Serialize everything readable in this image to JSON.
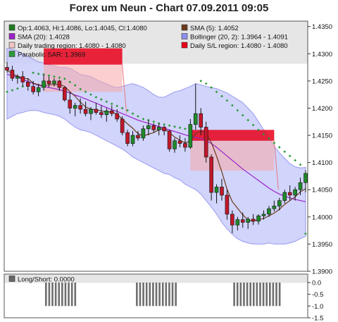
{
  "chart_data": {
    "title": "Forex um Neun - Chart 07.09.2011 09:05",
    "type": "candlestick",
    "legend": [
      {
        "label": "Op:1.4063, Hi:1.4086, Lo:1.4045, Cl:1.4080",
        "color": "#1f7a1f"
      },
      {
        "label": "SMA (5): 1.4052",
        "color": "#6b3a1a"
      },
      {
        "label": "SMA (20): 1.4028",
        "color": "#9a22c8"
      },
      {
        "label": "Bollinger (20, 2): 1.3964 - 1.4091",
        "color": "#8f8ff0"
      },
      {
        "label": "Daily trading region: 1.4080 - 1.4080",
        "color": "#f2c4c4"
      },
      {
        "label": "Daily S/L region: 1.4080 - 1.4080",
        "color": "#e8001a"
      },
      {
        "label": "Parabolic SAR: 1.3969",
        "color": "#2a9a3a"
      }
    ],
    "ylim": [
      1.39,
      1.436
    ],
    "yticks": [
      "1.4350",
      "1.4300",
      "1.4250",
      "1.4200",
      "1.4150",
      "1.4100",
      "1.4050",
      "1.4000",
      "1.3950",
      "1.3900"
    ],
    "candles": [
      [
        1.4275,
        1.4285,
        1.4265,
        1.427
      ],
      [
        1.427,
        1.4278,
        1.425,
        1.4255
      ],
      [
        1.4255,
        1.4262,
        1.4245,
        1.4258
      ],
      [
        1.4258,
        1.4268,
        1.424,
        1.4248
      ],
      [
        1.4248,
        1.4255,
        1.4232,
        1.424
      ],
      [
        1.424,
        1.425,
        1.4225,
        1.423
      ],
      [
        1.423,
        1.4245,
        1.4222,
        1.4238
      ],
      [
        1.4238,
        1.4262,
        1.4232,
        1.425
      ],
      [
        1.425,
        1.4258,
        1.4238,
        1.4245
      ],
      [
        1.4245,
        1.4255,
        1.424,
        1.425
      ],
      [
        1.425,
        1.4252,
        1.4232,
        1.4238
      ],
      [
        1.4238,
        1.424,
        1.4212,
        1.4215
      ],
      [
        1.4215,
        1.423,
        1.419,
        1.42
      ],
      [
        1.42,
        1.421,
        1.4185,
        1.4205
      ],
      [
        1.4205,
        1.4218,
        1.419,
        1.4198
      ],
      [
        1.4198,
        1.4212,
        1.4185,
        1.419
      ],
      [
        1.419,
        1.4202,
        1.4178,
        1.4198
      ],
      [
        1.4198,
        1.421,
        1.4188,
        1.4192
      ],
      [
        1.4192,
        1.4205,
        1.4182,
        1.4188
      ],
      [
        1.4188,
        1.42,
        1.4175,
        1.4195
      ],
      [
        1.4195,
        1.4205,
        1.4185,
        1.419
      ],
      [
        1.419,
        1.4198,
        1.4175,
        1.418
      ],
      [
        1.418,
        1.4185,
        1.415,
        1.4155
      ],
      [
        1.4155,
        1.416,
        1.413,
        1.4135
      ],
      [
        1.4135,
        1.4158,
        1.413,
        1.415
      ],
      [
        1.415,
        1.4158,
        1.414,
        1.4145
      ],
      [
        1.4145,
        1.4168,
        1.414,
        1.4162
      ],
      [
        1.4162,
        1.4178,
        1.415,
        1.4168
      ],
      [
        1.4168,
        1.4172,
        1.4155,
        1.416
      ],
      [
        1.416,
        1.4172,
        1.415,
        1.4165
      ],
      [
        1.4165,
        1.4168,
        1.415,
        1.4158
      ],
      [
        1.4158,
        1.416,
        1.412,
        1.4125
      ],
      [
        1.4125,
        1.4145,
        1.4118,
        1.414
      ],
      [
        1.414,
        1.415,
        1.4128,
        1.4135
      ],
      [
        1.4135,
        1.4145,
        1.412,
        1.4128
      ],
      [
        1.4128,
        1.418,
        1.4125,
        1.417
      ],
      [
        1.417,
        1.4245,
        1.416,
        1.419
      ],
      [
        1.419,
        1.42,
        1.415,
        1.4165
      ],
      [
        1.4165,
        1.4175,
        1.41,
        1.411
      ],
      [
        1.411,
        1.4115,
        1.403,
        1.4045
      ],
      [
        1.4045,
        1.406,
        1.4025,
        1.4055
      ],
      [
        1.4055,
        1.407,
        1.403,
        1.404
      ],
      [
        1.404,
        1.405,
        1.3995,
        1.4005
      ],
      [
        1.4005,
        1.4012,
        1.397,
        1.3985
      ],
      [
        1.3985,
        1.4,
        1.3975,
        1.3995
      ],
      [
        1.3995,
        1.4008,
        1.398,
        1.399
      ],
      [
        1.399,
        1.4,
        1.3978,
        1.3996
      ],
      [
        1.3996,
        1.4005,
        1.3985,
        1.3992
      ],
      [
        1.3992,
        1.4005,
        1.3986,
        1.4002
      ],
      [
        1.4002,
        1.4012,
        1.3995,
        1.4005
      ],
      [
        1.4005,
        1.402,
        1.4,
        1.4015
      ],
      [
        1.4015,
        1.403,
        1.401,
        1.402
      ],
      [
        1.402,
        1.4035,
        1.4012,
        1.403
      ],
      [
        1.403,
        1.405,
        1.4025,
        1.4045
      ],
      [
        1.4045,
        1.4058,
        1.403,
        1.404
      ],
      [
        1.404,
        1.4055,
        1.403,
        1.405
      ],
      [
        1.405,
        1.4072,
        1.404,
        1.4063
      ],
      [
        1.4063,
        1.4086,
        1.4045,
        1.408
      ]
    ],
    "sma5": [
      1.427,
      1.4263,
      1.4259,
      1.4255,
      1.4254,
      1.4246,
      1.4243,
      1.4241,
      1.4243,
      1.4243,
      1.4244,
      1.424,
      1.423,
      1.4222,
      1.4211,
      1.4202,
      1.4198,
      1.4197,
      1.4195,
      1.4193,
      1.4193,
      1.4189,
      1.418,
      1.4171,
      1.4163,
      1.4153,
      1.4149,
      1.4152,
      1.4155,
      1.416,
      1.4163,
      1.4155,
      1.4147,
      1.4141,
      1.4136,
      1.414,
      1.4153,
      1.4158,
      1.4153,
      1.4137,
      1.4112,
      1.4083,
      1.4051,
      1.4028,
      1.4016,
      1.4004,
      1.3994,
      1.3992,
      1.3995,
      1.3997,
      1.4002,
      1.4007,
      1.4014,
      1.4023,
      1.403,
      1.4037,
      1.4046,
      1.4052
    ],
    "sma20": [
      1.4262,
      1.426,
      1.4257,
      1.4253,
      1.4249,
      1.4245,
      1.4242,
      1.424,
      1.4238,
      1.4236,
      1.4234,
      1.4231,
      1.4228,
      1.4224,
      1.4221,
      1.4217,
      1.4213,
      1.4209,
      1.4205,
      1.4201,
      1.4197,
      1.4194,
      1.419,
      1.4186,
      1.4182,
      1.4178,
      1.4175,
      1.4172,
      1.4169,
      1.4166,
      1.4163,
      1.416,
      1.4157,
      1.4154,
      1.4151,
      1.4148,
      1.4146,
      1.4144,
      1.414,
      1.4135,
      1.4128,
      1.412,
      1.4112,
      1.4104,
      1.4096,
      1.4088,
      1.4081,
      1.4074,
      1.4067,
      1.406,
      1.4053,
      1.4047,
      1.4042,
      1.4038,
      1.4035,
      1.4032,
      1.403,
      1.4028
    ],
    "boll_upper": [
      1.431,
      1.4308,
      1.4305,
      1.43,
      1.4295,
      1.429,
      1.4285,
      1.4283,
      1.428,
      1.4278,
      1.4275,
      1.4275,
      1.4273,
      1.4268,
      1.4262,
      1.426,
      1.4258,
      1.4253,
      1.4248,
      1.4245,
      1.424,
      1.4238,
      1.424,
      1.4243,
      1.4245,
      1.4242,
      1.4238,
      1.4232,
      1.4225,
      1.422,
      1.422,
      1.4225,
      1.423,
      1.4232,
      1.4236,
      1.424,
      1.4245,
      1.4243,
      1.424,
      1.4238,
      1.4236,
      1.4232,
      1.4228,
      1.4222,
      1.4216,
      1.421,
      1.42,
      1.419,
      1.4175,
      1.416,
      1.4145,
      1.413,
      1.4118,
      1.4108,
      1.4098,
      1.4092,
      1.409,
      1.4091
    ],
    "boll_lower": [
      1.418,
      1.4185,
      1.419,
      1.4192,
      1.4195,
      1.4196,
      1.4195,
      1.4192,
      1.419,
      1.4188,
      1.4185,
      1.418,
      1.4172,
      1.4165,
      1.416,
      1.4158,
      1.4155,
      1.415,
      1.4145,
      1.414,
      1.4135,
      1.413,
      1.4125,
      1.4118,
      1.411,
      1.4105,
      1.41,
      1.4095,
      1.409,
      1.4085,
      1.408,
      1.4078,
      1.4072,
      1.4068,
      1.406,
      1.4055,
      1.405,
      1.4042,
      1.403,
      1.4018,
      1.4005,
      1.399,
      1.3978,
      1.3968,
      1.396,
      1.3955,
      1.3952,
      1.395,
      1.395,
      1.395,
      1.3952,
      1.395,
      1.395,
      1.395,
      1.3952,
      1.3955,
      1.396,
      1.3964
    ],
    "sar": [
      [
        0,
        1.423
      ],
      [
        1,
        1.4233
      ],
      [
        2,
        1.4236
      ],
      [
        3,
        1.424
      ],
      [
        5,
        1.4265
      ],
      [
        6,
        1.4263
      ],
      [
        7,
        1.4262
      ],
      [
        8,
        1.426
      ],
      [
        9,
        1.4258
      ],
      [
        10,
        1.4256
      ],
      [
        11,
        1.4254
      ],
      [
        12,
        1.4248
      ],
      [
        13,
        1.4242
      ],
      [
        14,
        1.4235
      ],
      [
        15,
        1.423
      ],
      [
        16,
        1.4225
      ],
      [
        17,
        1.422
      ],
      [
        18,
        1.4216
      ],
      [
        19,
        1.4212
      ],
      [
        20,
        1.4208
      ],
      [
        21,
        1.4204
      ],
      [
        22,
        1.42
      ],
      [
        23,
        1.4196
      ],
      [
        24,
        1.419
      ],
      [
        25,
        1.4185
      ],
      [
        26,
        1.418
      ],
      [
        27,
        1.4178
      ],
      [
        28,
        1.4175
      ],
      [
        29,
        1.4172
      ],
      [
        30,
        1.417
      ],
      [
        31,
        1.4168
      ],
      [
        32,
        1.4166
      ],
      [
        33,
        1.4164
      ],
      [
        34,
        1.4162
      ],
      [
        35,
        1.416
      ],
      [
        37,
        1.425
      ],
      [
        38,
        1.4245
      ],
      [
        39,
        1.4238
      ],
      [
        40,
        1.423
      ],
      [
        41,
        1.4222
      ],
      [
        42,
        1.4214
      ],
      [
        43,
        1.4205
      ],
      [
        44,
        1.4196
      ],
      [
        45,
        1.4187
      ],
      [
        46,
        1.4178
      ],
      [
        47,
        1.4169
      ],
      [
        48,
        1.416
      ],
      [
        49,
        1.4152
      ],
      [
        50,
        1.4144
      ],
      [
        51,
        1.4136
      ],
      [
        52,
        1.4128
      ],
      [
        53,
        1.412
      ],
      [
        54,
        1.4112
      ],
      [
        55,
        1.4104
      ],
      [
        56,
        1.4096
      ],
      [
        57,
        1.3969
      ]
    ],
    "sl_regions": [
      {
        "from": 7,
        "to": 22,
        "low": 1.428,
        "high": 1.431
      },
      {
        "from": 35,
        "to": 51,
        "low": 1.414,
        "high": 1.416
      }
    ],
    "trading_regions": [
      {
        "from": 7,
        "to": 22,
        "low": 1.423,
        "high": 1.428
      },
      {
        "from": 35,
        "to": 51,
        "low": 1.4085,
        "high": 1.414
      }
    ],
    "longshort": {
      "label": "Long/Short: 0.0000",
      "ylim": [
        -1.5,
        0.0
      ],
      "yticks": [
        "0.0",
        "-0.5",
        "-1.0",
        "-1.5"
      ],
      "bars": [
        0,
        0,
        0,
        0,
        0,
        0,
        0,
        0,
        0,
        0,
        0,
        0,
        -1,
        -1,
        -1,
        -1,
        -1,
        -1,
        -1,
        -1,
        -1,
        -1,
        0,
        0,
        0,
        0,
        0,
        0,
        0,
        0,
        0,
        0,
        0,
        0,
        0,
        0,
        0,
        0,
        0,
        0,
        -1,
        -1,
        -1,
        -1,
        -1,
        -1,
        -1,
        -1,
        -1,
        -1,
        -1,
        -1,
        -1,
        0,
        0,
        0,
        0,
        0,
        0,
        0,
        0,
        0,
        0,
        0,
        0,
        0,
        0,
        0,
        0,
        0,
        -1,
        -1,
        -1,
        -1,
        -1,
        -1,
        -1,
        -1,
        -1,
        -1,
        -1,
        -1,
        -1,
        -1,
        -1,
        0,
        0,
        0,
        0,
        0,
        0,
        0,
        0
      ]
    }
  }
}
